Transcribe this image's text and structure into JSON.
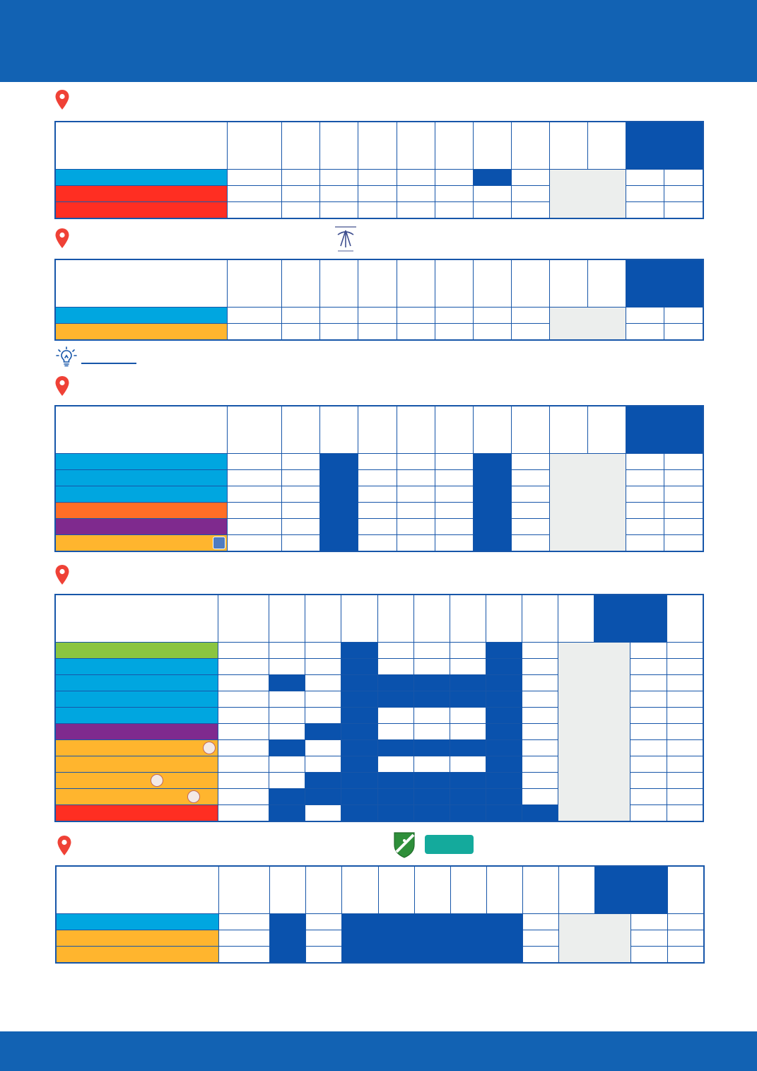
{
  "colors": {
    "brand_band": "#1262b3",
    "grid_line": "#1756a9",
    "occupied_cell": "#0a52ad",
    "closed_cell": "#eceeed",
    "pin_marker": "#ef4136",
    "category_blue": "#00a6e0",
    "category_red": "#ff2e22",
    "category_amber": "#ffb52e",
    "category_orange": "#ff6e26",
    "category_purple": "#7f2a8e",
    "category_green": "#8bc540",
    "accent_teal": "#14aa9c"
  },
  "icons": {
    "location_marker": "map-pin-icon",
    "tip_marker": "lightbulb-icon",
    "club_crest": "crest-icon",
    "club_shield": "shield-logo-icon"
  },
  "schedules": [
    {
      "rows": [
        "category_blue",
        "category_red",
        "category_red"
      ]
    },
    {
      "rows": [
        "category_blue",
        "category_amber"
      ]
    },
    {
      "rows": [
        "category_blue",
        "category_blue",
        "category_blue",
        "category_orange",
        "category_purple",
        "category_amber"
      ]
    },
    {
      "rows": [
        "category_green",
        "category_blue",
        "category_blue",
        "category_blue",
        "category_blue",
        "category_purple",
        "category_amber",
        "category_amber",
        "category_amber",
        "category_amber",
        "category_red"
      ]
    },
    {
      "rows": [
        "category_blue",
        "category_amber",
        "category_amber"
      ]
    }
  ]
}
